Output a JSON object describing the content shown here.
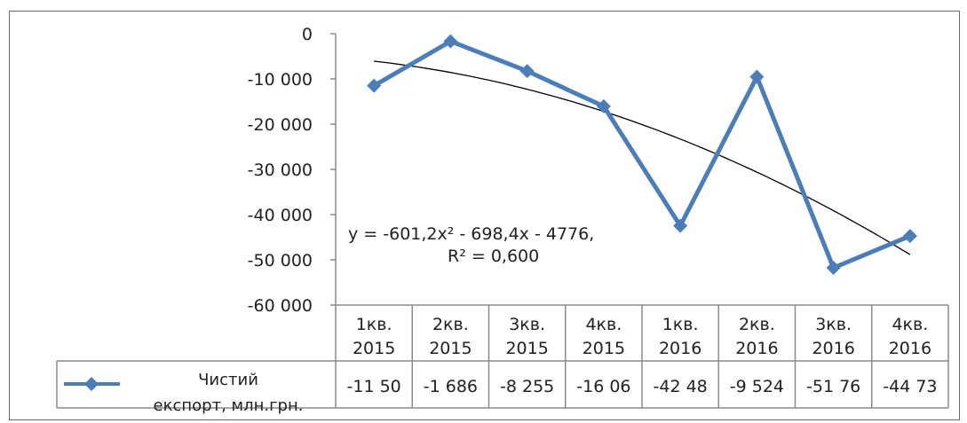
{
  "chart_data": {
    "type": "line",
    "title": "",
    "xlabel": "",
    "ylabel": "",
    "ylim": [
      -60000,
      0
    ],
    "yticks": [
      0,
      -10000,
      -20000,
      -30000,
      -40000,
      -50000,
      -60000
    ],
    "ytick_labels": [
      "0",
      "-10 000",
      "-20 000",
      "-30 000",
      "-40 000",
      "-50 000",
      "-60 000"
    ],
    "categories": [
      [
        "1кв.",
        "2015"
      ],
      [
        "2кв.",
        "2015"
      ],
      [
        "3кв.",
        "2015"
      ],
      [
        "4кв.",
        "2015"
      ],
      [
        "1кв.",
        "2016"
      ],
      [
        "2кв.",
        "2016"
      ],
      [
        "3кв.",
        "2016"
      ],
      [
        "4кв.",
        "2016"
      ]
    ],
    "series": [
      {
        "name": "Чистий експорт, млн.грн.",
        "color": "#4a7ebb",
        "values": [
          -11500,
          -1686,
          -8255,
          -16060,
          -42480,
          -9524,
          -51760,
          -44730
        ],
        "table_labels": [
          "-11 50",
          "-1 686",
          "-8 255",
          "-16 06",
          "-42 48",
          "-9 524",
          "-51 76",
          "-44 73"
        ]
      }
    ],
    "trendline": {
      "type": "polynomial",
      "equation": "y = -601,2x² - 698,4x - 4776,",
      "r2": "R² = 0,600",
      "color": "#000000"
    },
    "legend": {
      "line1": "Чистий",
      "line2": "експорт, млн.грн."
    },
    "grid": false
  }
}
